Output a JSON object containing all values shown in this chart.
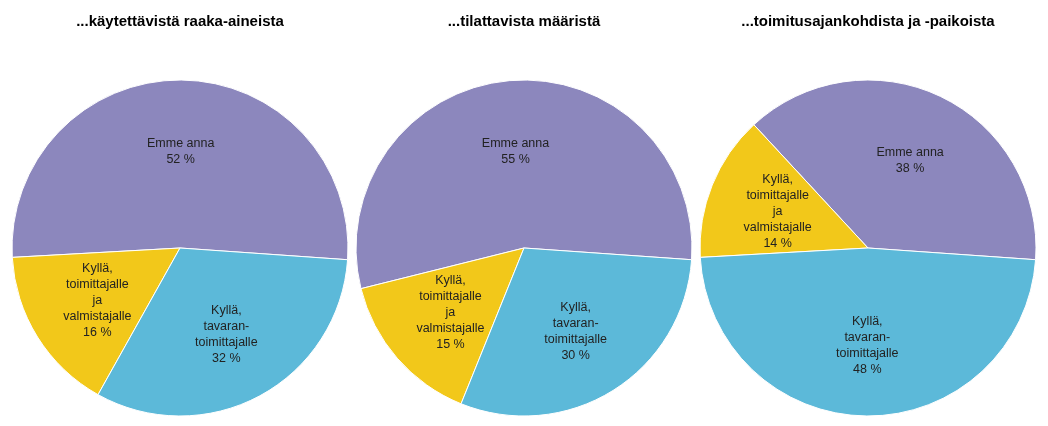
{
  "chart_data": [
    {
      "type": "pie",
      "title": "...käytettävistä raaka-aineista",
      "categories": [
        "Emme anna",
        "Kyllä,\ntoimittajalle\nja\nvalmistajalle",
        "Kyllä,\ntavaran-\ntoimittajalle"
      ],
      "values": [
        52,
        16,
        32
      ],
      "value_labels": [
        "52 %",
        "16 %",
        "32 %"
      ],
      "colors": [
        "#8c87bd",
        "#f2c81a",
        "#5cb9d9"
      ]
    },
    {
      "type": "pie",
      "title": "...tilattavista määristä",
      "categories": [
        "Emme anna",
        "Kyllä,\ntoimittajalle\nja\nvalmistajalle",
        "Kyllä,\ntavaran-\ntoimittajalle"
      ],
      "values": [
        55,
        15,
        30
      ],
      "value_labels": [
        "55 %",
        "15 %",
        "30 %"
      ],
      "colors": [
        "#8c87bd",
        "#f2c81a",
        "#5cb9d9"
      ]
    },
    {
      "type": "pie",
      "title": "...toimitusajankohdista ja -paikoista",
      "categories": [
        "Emme anna",
        "Kyllä,\ntoimittajalle\nja\nvalmistajalle",
        "Kyllä,\ntavaran-\ntoimittajalle"
      ],
      "values": [
        38,
        14,
        48
      ],
      "value_labels": [
        "38 %",
        "14 %",
        "48 %"
      ],
      "colors": [
        "#8c87bd",
        "#f2c81a",
        "#5cb9d9"
      ]
    }
  ]
}
